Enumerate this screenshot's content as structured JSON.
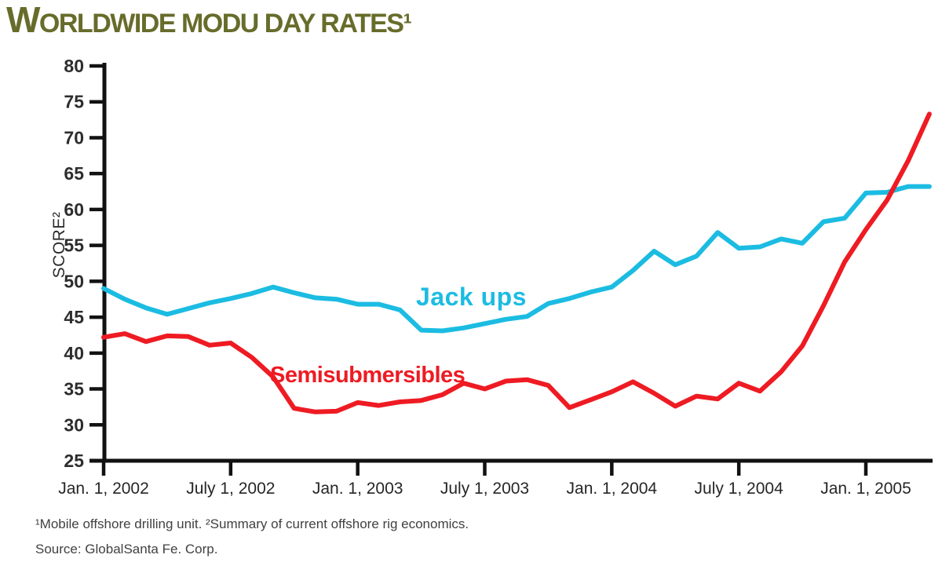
{
  "page": {
    "footnote": "¹Mobile offshore drilling unit. ²Summary of current offshore rig economics.",
    "source": "Source: GlobalSanta Fe. Corp."
  },
  "colors": {
    "jack_ups_line": "#1CBCE2",
    "semisubmersibles_line": "#EE1B23",
    "title_text": "#676C2B",
    "axis": "#111111"
  },
  "chart_data": {
    "type": "line",
    "title": "WORLDWIDE MODU DAY RATES¹",
    "xlabel": "",
    "ylabel": "SCORE²",
    "ylim": [
      25,
      80
    ],
    "y_ticks": [
      25,
      30,
      35,
      40,
      45,
      50,
      55,
      60,
      65,
      70,
      75,
      80
    ],
    "x_tick_labels": [
      "Jan. 1, 2002",
      "July 1, 2002",
      "Jan. 1, 2003",
      "July 1, 2003",
      "Jan. 1, 2004",
      "July 1, 2004",
      "Jan. 1, 2005"
    ],
    "x_tick_month_index": [
      0,
      6,
      12,
      18,
      24,
      30,
      36
    ],
    "grid": false,
    "legend_position": "inline-labels-on-lines",
    "x_months": [
      "2002-01",
      "2002-02",
      "2002-03",
      "2002-04",
      "2002-05",
      "2002-06",
      "2002-07",
      "2002-08",
      "2002-09",
      "2002-10",
      "2002-11",
      "2002-12",
      "2003-01",
      "2003-02",
      "2003-03",
      "2003-04",
      "2003-05",
      "2003-06",
      "2003-07",
      "2003-08",
      "2003-09",
      "2003-10",
      "2003-11",
      "2003-12",
      "2004-01",
      "2004-02",
      "2004-03",
      "2004-04",
      "2004-05",
      "2004-06",
      "2004-07",
      "2004-08",
      "2004-09",
      "2004-10",
      "2004-11",
      "2004-12",
      "2005-01",
      "2005-02",
      "2005-03",
      "2005-04"
    ],
    "series": [
      {
        "name": "Jack ups",
        "color": "#1CBCE2",
        "values": [
          49.0,
          47.5,
          46.3,
          45.4,
          46.2,
          47.0,
          47.6,
          48.3,
          49.2,
          48.4,
          47.7,
          47.5,
          46.8,
          46.8,
          46.0,
          43.2,
          43.1,
          43.5,
          44.1,
          44.7,
          45.1,
          46.9,
          47.6,
          48.5,
          49.2,
          51.5,
          54.2,
          52.3,
          53.5,
          56.8,
          54.6,
          54.8,
          55.9,
          55.3,
          58.3,
          58.8,
          62.3,
          62.4,
          63.2,
          63.2
        ]
      },
      {
        "name": "Semisubmersibles",
        "color": "#EE1B23",
        "values": [
          42.2,
          42.7,
          41.6,
          42.4,
          42.3,
          41.1,
          41.4,
          39.4,
          36.7,
          32.3,
          31.8,
          31.9,
          33.1,
          32.7,
          33.2,
          33.4,
          34.2,
          35.8,
          35.0,
          36.1,
          36.3,
          35.5,
          32.4,
          33.5,
          34.6,
          36.0,
          34.4,
          32.6,
          34.0,
          33.6,
          35.8,
          34.7,
          37.4,
          41.0,
          46.6,
          52.7,
          57.2,
          61.3,
          66.8,
          73.3
        ]
      }
    ]
  }
}
